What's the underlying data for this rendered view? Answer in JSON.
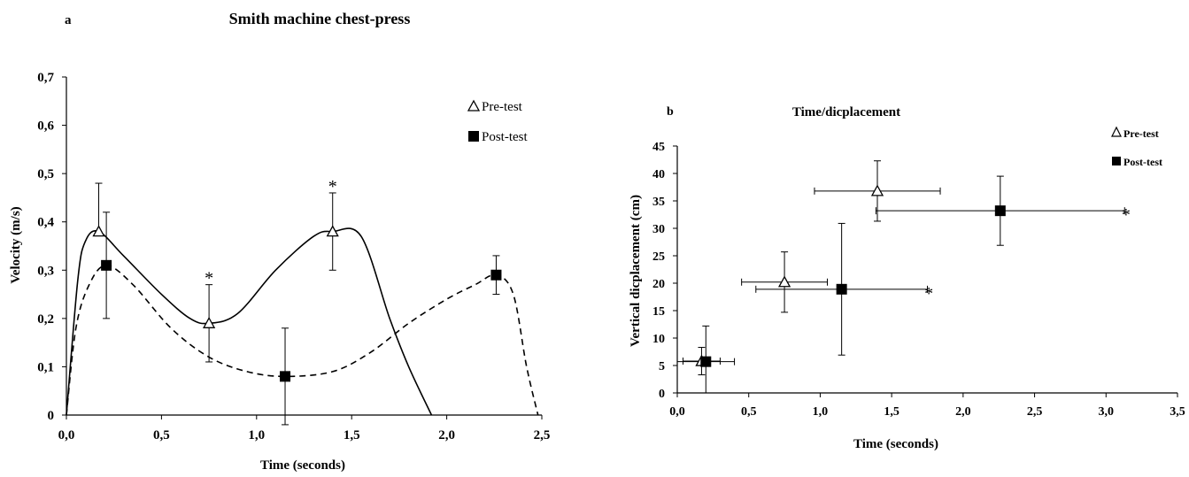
{
  "colors": {
    "ink": "#000000",
    "background": "#ffffff"
  },
  "chart_data": [
    {
      "type": "line",
      "panel_label": "a",
      "title": "Smith machine chest-press",
      "xlabel": "Time (seconds)",
      "ylabel": "Velocity (m/s)",
      "xlim": [
        0,
        2.5
      ],
      "ylim": [
        0,
        0.7
      ],
      "x_ticks": [
        "0,0",
        "0,5",
        "1,0",
        "1,5",
        "2,0",
        "2,5"
      ],
      "y_ticks": [
        "0",
        "0,1",
        "0,2",
        "0,3",
        "0,4",
        "0,5",
        "0,6",
        "0,7"
      ],
      "legend_position": "top-right",
      "series": [
        {
          "name": "Pre-test",
          "marker": "triangle-open",
          "line": "solid",
          "curve": [
            [
              0.0,
              0.0
            ],
            [
              0.06,
              0.28
            ],
            [
              0.1,
              0.36
            ],
            [
              0.17,
              0.38
            ],
            [
              0.3,
              0.33
            ],
            [
              0.5,
              0.25
            ],
            [
              0.65,
              0.2
            ],
            [
              0.75,
              0.19
            ],
            [
              0.9,
              0.21
            ],
            [
              1.1,
              0.3
            ],
            [
              1.3,
              0.37
            ],
            [
              1.4,
              0.38
            ],
            [
              1.55,
              0.37
            ],
            [
              1.7,
              0.2
            ],
            [
              1.8,
              0.1
            ],
            [
              1.92,
              0.0
            ]
          ],
          "points": [
            {
              "x": 0.17,
              "y": 0.38,
              "err_up": 0.1,
              "err_down": 0.0
            },
            {
              "x": 0.75,
              "y": 0.19,
              "err_up": 0.08,
              "err_down": 0.08
            },
            {
              "x": 1.4,
              "y": 0.38,
              "err_up": 0.08,
              "err_down": 0.08
            }
          ]
        },
        {
          "name": "Post-test",
          "marker": "square-filled",
          "line": "dashed",
          "curve": [
            [
              0.0,
              0.0
            ],
            [
              0.05,
              0.18
            ],
            [
              0.12,
              0.27
            ],
            [
              0.21,
              0.31
            ],
            [
              0.35,
              0.27
            ],
            [
              0.55,
              0.18
            ],
            [
              0.75,
              0.12
            ],
            [
              0.95,
              0.09
            ],
            [
              1.15,
              0.08
            ],
            [
              1.4,
              0.09
            ],
            [
              1.6,
              0.13
            ],
            [
              1.8,
              0.19
            ],
            [
              2.0,
              0.24
            ],
            [
              2.15,
              0.27
            ],
            [
              2.26,
              0.29
            ],
            [
              2.35,
              0.25
            ],
            [
              2.42,
              0.1
            ],
            [
              2.48,
              0.0
            ]
          ],
          "points": [
            {
              "x": 0.21,
              "y": 0.31,
              "err_up": 0.11,
              "err_down": 0.11
            },
            {
              "x": 1.15,
              "y": 0.08,
              "err_up": 0.1,
              "err_down": 0.1
            },
            {
              "x": 2.26,
              "y": 0.29,
              "err_up": 0.04,
              "err_down": 0.04
            }
          ]
        }
      ],
      "annotations": [
        {
          "text": "*",
          "x": 0.75,
          "y": 0.29
        },
        {
          "text": "*",
          "x": 1.4,
          "y": 0.48
        }
      ]
    },
    {
      "type": "scatter",
      "panel_label": "b",
      "title": "Time/dicplacement",
      "xlabel": "Time (seconds)",
      "ylabel": "Vertical dicplacement (cm)",
      "xlim": [
        0,
        3.5
      ],
      "ylim": [
        0,
        45
      ],
      "x_ticks": [
        "0,0",
        "0,5",
        "1,0",
        "1,5",
        "2,0",
        "2,5",
        "3,0",
        "3,5"
      ],
      "y_ticks": [
        "0",
        "5",
        "10",
        "15",
        "20",
        "25",
        "30",
        "35",
        "40",
        "45"
      ],
      "legend_position": "top-right",
      "series": [
        {
          "name": "Pre-test",
          "marker": "triangle-open",
          "points": [
            {
              "x": 0.17,
              "y": 5.8,
              "xerr": 0.13,
              "yerr": 2.5
            },
            {
              "x": 0.75,
              "y": 20.2,
              "xerr": 0.3,
              "yerr": 5.5
            },
            {
              "x": 1.4,
              "y": 36.8,
              "xerr": 0.44,
              "yerr": 5.5
            }
          ]
        },
        {
          "name": "Post-test",
          "marker": "square-filled",
          "points": [
            {
              "x": 0.2,
              "y": 5.7,
              "xerr": 0.2,
              "yerr": 6.5
            },
            {
              "x": 1.15,
              "y": 18.9,
              "xerr": 0.6,
              "yerr": 12.0
            },
            {
              "x": 2.26,
              "y": 33.2,
              "xerr": 0.87,
              "yerr": 6.3
            }
          ]
        }
      ],
      "annotations": [
        {
          "text": "*",
          "x": 1.76,
          "y": 18.9
        },
        {
          "text": "*",
          "x": 3.14,
          "y": 33.2
        }
      ]
    }
  ]
}
